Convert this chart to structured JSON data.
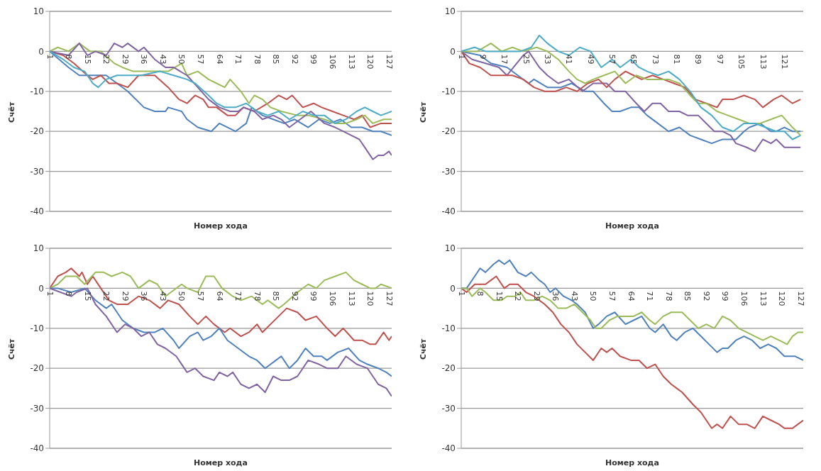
{
  "chart_data": [
    {
      "type": "line",
      "xlabel": "Номер хода",
      "ylabel": "Счёт",
      "xlim": [
        1,
        128
      ],
      "xticks": [
        1,
        8,
        15,
        22,
        29,
        36,
        43,
        50,
        57,
        64,
        71,
        78,
        85,
        92,
        99,
        106,
        113,
        120,
        127
      ],
      "ylim": [
        -40,
        10
      ],
      "yticks": [
        -40,
        -30,
        -20,
        -10,
        0,
        10
      ],
      "grid": "y",
      "series": [
        {
          "color": "#4f81bd",
          "x": [
            1,
            8,
            12,
            18,
            22,
            26,
            30,
            36,
            40,
            44,
            45,
            50,
            52,
            56,
            61,
            64,
            70,
            74,
            76,
            80,
            84,
            88,
            92,
            97,
            101,
            105,
            109,
            113,
            117,
            121,
            124,
            128
          ],
          "values": [
            0,
            -4,
            -6,
            -6,
            -6,
            -8,
            -10,
            -14,
            -15,
            -15,
            -14,
            -15,
            -17,
            -19,
            -20,
            -18,
            -20,
            -18,
            -14,
            -16,
            -17,
            -18,
            -17,
            -19,
            -17,
            -18,
            -17,
            -19,
            -19,
            -20,
            -20,
            -21
          ]
        },
        {
          "color": "#c0504d",
          "x": [
            1,
            6,
            10,
            15,
            17,
            20,
            23,
            26,
            30,
            34,
            40,
            45,
            49,
            52,
            55,
            58,
            60,
            63,
            67,
            70,
            73,
            77,
            82,
            86,
            89,
            91,
            95,
            99,
            102,
            106,
            110,
            114,
            117,
            120,
            124,
            128
          ],
          "values": [
            0,
            -1,
            -3,
            -6,
            -7,
            -6,
            -8,
            -8,
            -9,
            -6,
            -6,
            -9,
            -12,
            -13,
            -11,
            -12,
            -14,
            -14,
            -16,
            -16,
            -14,
            -15,
            -13,
            -11,
            -12,
            -11,
            -14,
            -13,
            -14,
            -15,
            -16,
            -17,
            -16,
            -19,
            -18,
            -18
          ]
        },
        {
          "color": "#9bbb59",
          "x": [
            1,
            4,
            8,
            12,
            16,
            20,
            25,
            28,
            32,
            38,
            45,
            50,
            52,
            56,
            60,
            63,
            66,
            68,
            72,
            75,
            77,
            80,
            83,
            87,
            93,
            97,
            103,
            107,
            111,
            115,
            118,
            121,
            125,
            128
          ],
          "values": [
            0,
            1,
            0,
            2,
            0,
            0,
            -3,
            -4,
            -5,
            -5,
            -5,
            -3,
            -6,
            -5,
            -7,
            -8,
            -9,
            -7,
            -10,
            -13,
            -11,
            -12,
            -14,
            -15,
            -16,
            -16,
            -17,
            -18,
            -18,
            -17,
            -16,
            -18,
            -17,
            -17
          ]
        },
        {
          "color": "#8064a2",
          "x": [
            1,
            8,
            12,
            15,
            18,
            22,
            25,
            28,
            30,
            34,
            36,
            40,
            44,
            47,
            52,
            56,
            60,
            64,
            68,
            71,
            73,
            77,
            80,
            84,
            87,
            90,
            94,
            98,
            103,
            107,
            110,
            113,
            116,
            119,
            121,
            123,
            125,
            127,
            128
          ],
          "values": [
            0,
            -1,
            2,
            -1,
            0,
            -1,
            2,
            1,
            2,
            0,
            1,
            -2,
            -4,
            -4,
            -6,
            -9,
            -12,
            -14,
            -15,
            -15,
            -14,
            -15,
            -17,
            -16,
            -17,
            -19,
            -17,
            -15,
            -18,
            -19,
            -20,
            -21,
            -22,
            -25,
            -27,
            -26,
            -26,
            -25,
            -26
          ]
        },
        {
          "color": "#4bacc6",
          "x": [
            1,
            6,
            10,
            14,
            17,
            19,
            22,
            26,
            30,
            35,
            42,
            47,
            52,
            55,
            60,
            63,
            66,
            70,
            74,
            78,
            82,
            86,
            90,
            95,
            99,
            103,
            107,
            111,
            115,
            118,
            121,
            124,
            128
          ],
          "values": [
            0,
            -2,
            -4,
            -5,
            -8,
            -9,
            -7,
            -6,
            -6,
            -6,
            -5,
            -6,
            -7,
            -8,
            -11,
            -13,
            -14,
            -14,
            -13,
            -15,
            -16,
            -15,
            -17,
            -15,
            -16,
            -16,
            -18,
            -17,
            -15,
            -14,
            -15,
            -16,
            -15
          ]
        }
      ]
    },
    {
      "type": "line",
      "xlabel": "Номер хода",
      "ylabel": "Счёт",
      "xlim": [
        1,
        128
      ],
      "xticks": [
        1,
        9,
        17,
        25,
        33,
        41,
        49,
        57,
        65,
        73,
        81,
        89,
        97,
        105,
        113,
        121
      ],
      "ylim": [
        -40,
        10
      ],
      "yticks": [
        -40,
        -30,
        -20,
        -10,
        0,
        10
      ],
      "grid": "y",
      "series": [
        {
          "color": "#4f81bd",
          "x": [
            1,
            8,
            12,
            18,
            22,
            26,
            28,
            33,
            38,
            42,
            47,
            50,
            54,
            57,
            60,
            64,
            67,
            70,
            74,
            78,
            82,
            86,
            90,
            94,
            98,
            103,
            106,
            108,
            112,
            116,
            118,
            121,
            124,
            127
          ],
          "values": [
            0,
            -1,
            -3,
            -4,
            -6,
            -8,
            -7,
            -9,
            -9,
            -8,
            -10,
            -10,
            -13,
            -15,
            -15,
            -14,
            -14,
            -16,
            -18,
            -20,
            -19,
            -21,
            -22,
            -23,
            -22,
            -22,
            -20,
            -19,
            -18,
            -20,
            -20,
            -19,
            -20,
            -20
          ]
        },
        {
          "color": "#8064a2",
          "x": [
            1,
            5,
            10,
            15,
            18,
            24,
            26,
            30,
            33,
            37,
            41,
            46,
            50,
            55,
            58,
            62,
            66,
            69,
            72,
            75,
            78,
            82,
            85,
            89,
            92,
            95,
            98,
            101,
            103,
            107,
            110,
            113,
            116,
            118,
            121,
            127
          ],
          "values": [
            0,
            -2,
            -3,
            -4,
            -6,
            -1,
            0,
            -4,
            -6,
            -8,
            -7,
            -10,
            -8,
            -8,
            -10,
            -10,
            -13,
            -15,
            -13,
            -13,
            -15,
            -15,
            -16,
            -16,
            -18,
            -20,
            -20,
            -21,
            -23,
            -24,
            -25,
            -22,
            -23,
            -22,
            -24,
            -24
          ]
        },
        {
          "color": "#c0504d",
          "x": [
            1,
            4,
            8,
            12,
            16,
            20,
            24,
            28,
            32,
            36,
            40,
            44,
            48,
            52,
            55,
            58,
            62,
            65,
            68,
            72,
            76,
            80,
            84,
            88,
            92,
            96,
            98,
            102,
            106,
            110,
            113,
            117,
            120,
            124,
            127
          ],
          "values": [
            0,
            -3,
            -4,
            -6,
            -6,
            -6,
            -7,
            -9,
            -10,
            -10,
            -9,
            -10,
            -8,
            -7,
            -9,
            -7,
            -5,
            -6,
            -7,
            -6,
            -7,
            -8,
            -9,
            -12,
            -13,
            -14,
            -12,
            -12,
            -11,
            -12,
            -14,
            -12,
            -11,
            -13,
            -12
          ]
        },
        {
          "color": "#9bbb59",
          "x": [
            1,
            7,
            12,
            16,
            20,
            24,
            29,
            33,
            37,
            41,
            44,
            47,
            50,
            54,
            58,
            62,
            66,
            70,
            74,
            78,
            82,
            86,
            89,
            92,
            96,
            100,
            104,
            108,
            112,
            116,
            120,
            124,
            127
          ],
          "values": [
            0,
            0,
            2,
            0,
            1,
            0,
            1,
            0,
            -2,
            -5,
            -7,
            -8,
            -7,
            -6,
            -5,
            -8,
            -6,
            -7,
            -7,
            -7,
            -8,
            -11,
            -13,
            -13,
            -15,
            -16,
            -17,
            -18,
            -18,
            -17,
            -16,
            -19,
            -21
          ]
        },
        {
          "color": "#4bacc6",
          "x": [
            1,
            6,
            10,
            15,
            19,
            23,
            27,
            30,
            33,
            37,
            41,
            45,
            49,
            53,
            57,
            60,
            64,
            67,
            70,
            74,
            78,
            82,
            86,
            90,
            94,
            98,
            102,
            106,
            110,
            114,
            118,
            121,
            124,
            127
          ],
          "values": [
            0,
            1,
            0,
            0,
            0,
            0,
            1,
            4,
            2,
            0,
            -1,
            1,
            0,
            -4,
            -2,
            -4,
            -2,
            -4,
            -5,
            -6,
            -5,
            -7,
            -10,
            -14,
            -16,
            -19,
            -20,
            -18,
            -18,
            -19,
            -20,
            -20,
            -22,
            -21
          ]
        }
      ]
    },
    {
      "type": "line",
      "xlabel": "Номер хода",
      "ylabel": "Счёт",
      "xlim": [
        1,
        128
      ],
      "xticks": [
        1,
        8,
        15,
        22,
        29,
        36,
        43,
        50,
        57,
        64,
        71,
        78,
        85,
        92,
        99,
        106,
        113,
        120,
        127
      ],
      "ylim": [
        -40,
        10
      ],
      "yticks": [
        -40,
        -30,
        -20,
        -10,
        0,
        10
      ],
      "grid": "y",
      "series": [
        {
          "color": "#c0504d",
          "x": [
            1,
            4,
            7,
            9,
            12,
            13,
            15,
            17,
            20,
            23,
            26,
            30,
            34,
            38,
            42,
            45,
            49,
            53,
            56,
            59,
            62,
            66,
            68,
            72,
            75,
            78,
            80,
            83,
            86,
            89,
            93,
            96,
            100,
            104,
            107,
            110,
            114,
            117,
            120,
            122,
            125,
            127,
            128
          ],
          "values": [
            0,
            3,
            4,
            5,
            3,
            4,
            1,
            3,
            0,
            -3,
            -4,
            -4,
            -2,
            -3,
            -5,
            -3,
            -4,
            -7,
            -9,
            -7,
            -9,
            -11,
            -10,
            -12,
            -11,
            -9,
            -11,
            -9,
            -7,
            -5,
            -6,
            -8,
            -7,
            -10,
            -12,
            -10,
            -13,
            -13,
            -14,
            -14,
            -11,
            -13,
            -12
          ]
        },
        {
          "color": "#9bbb59",
          "x": [
            1,
            4,
            7,
            11,
            14,
            18,
            21,
            24,
            28,
            31,
            34,
            38,
            41,
            44,
            46,
            50,
            52,
            56,
            59,
            62,
            65,
            69,
            72,
            76,
            80,
            82,
            86,
            88,
            93,
            97,
            100,
            103,
            107,
            111,
            114,
            117,
            120,
            122,
            124,
            128
          ],
          "values": [
            0,
            1,
            3,
            3,
            1,
            4,
            4,
            3,
            4,
            3,
            0,
            2,
            1,
            -2,
            -1,
            1,
            0,
            -1,
            3,
            3,
            0,
            -2,
            -3,
            -2,
            -4,
            -3,
            -5,
            -4,
            -1,
            1,
            0,
            2,
            3,
            4,
            2,
            1,
            0,
            0,
            1,
            0
          ]
        },
        {
          "color": "#4f81bd",
          "x": [
            1,
            4,
            9,
            14,
            18,
            22,
            24,
            28,
            32,
            36,
            40,
            43,
            47,
            49,
            53,
            56,
            58,
            61,
            64,
            67,
            71,
            75,
            78,
            81,
            85,
            87,
            90,
            93,
            96,
            99,
            102,
            104,
            108,
            112,
            116,
            119,
            123,
            126,
            128
          ],
          "values": [
            0,
            0,
            -1,
            0,
            -3,
            -5,
            -4,
            -8,
            -10,
            -11,
            -11,
            -10,
            -13,
            -15,
            -12,
            -11,
            -13,
            -12,
            -10,
            -13,
            -15,
            -17,
            -18,
            -20,
            -18,
            -17,
            -20,
            -18,
            -15,
            -17,
            -17,
            -18,
            -16,
            -15,
            -18,
            -19,
            -20,
            -21,
            -22
          ]
        },
        {
          "color": "#8064a2",
          "x": [
            1,
            5,
            9,
            11,
            15,
            18,
            22,
            26,
            29,
            32,
            35,
            38,
            41,
            44,
            48,
            52,
            55,
            58,
            62,
            64,
            67,
            69,
            72,
            75,
            78,
            81,
            84,
            87,
            90,
            93,
            97,
            101,
            104,
            108,
            111,
            115,
            119,
            123,
            126,
            128
          ],
          "values": [
            0,
            -1,
            -2,
            -1,
            0,
            -4,
            -7,
            -11,
            -9,
            -10,
            -12,
            -11,
            -14,
            -15,
            -17,
            -21,
            -20,
            -22,
            -23,
            -21,
            -22,
            -21,
            -24,
            -25,
            -24,
            -26,
            -22,
            -23,
            -23,
            -22,
            -18,
            -19,
            -20,
            -20,
            -17,
            -19,
            -20,
            -24,
            -25,
            -27
          ]
        }
      ]
    },
    {
      "type": "line",
      "xlabel": "Номер хода",
      "ylabel": "Счёт",
      "xlim": [
        1,
        128
      ],
      "xticks": [
        1,
        8,
        15,
        22,
        29,
        36,
        43,
        50,
        57,
        64,
        71,
        78,
        85,
        92,
        99,
        106,
        113,
        120,
        127
      ],
      "ylim": [
        -40,
        10
      ],
      "yticks": [
        -40,
        -30,
        -20,
        -10,
        0,
        10
      ],
      "grid": "y",
      "series": [
        {
          "color": "#4f81bd",
          "x": [
            1,
            3,
            6,
            8,
            10,
            13,
            15,
            17,
            19,
            22,
            25,
            27,
            30,
            32,
            34,
            36,
            39,
            42,
            44,
            47,
            50,
            52,
            55,
            58,
            62,
            65,
            68,
            71,
            73,
            76,
            79,
            81,
            84,
            87,
            90,
            93,
            96,
            98,
            100,
            103,
            106,
            109,
            112,
            115,
            118,
            121,
            125,
            128
          ],
          "values": [
            0,
            0,
            3,
            5,
            4,
            6,
            7,
            6,
            7,
            4,
            3,
            4,
            2,
            1,
            -1,
            0,
            -2,
            -3,
            -4,
            -6,
            -10,
            -9,
            -7,
            -6,
            -9,
            -8,
            -7,
            -10,
            -11,
            -9,
            -12,
            -13,
            -11,
            -10,
            -12,
            -14,
            -16,
            -15,
            -15,
            -13,
            -12,
            -13,
            -15,
            -14,
            -15,
            -17,
            -17,
            -18
          ]
        },
        {
          "color": "#c0504d",
          "x": [
            1,
            3,
            6,
            8,
            10,
            12,
            14,
            16,
            17,
            19,
            22,
            25,
            28,
            32,
            35,
            38,
            41,
            44,
            47,
            50,
            53,
            55,
            57,
            60,
            64,
            67,
            70,
            73,
            76,
            79,
            81,
            83,
            87,
            90,
            94,
            96,
            98,
            101,
            104,
            107,
            110,
            113,
            116,
            119,
            121,
            124,
            126,
            128
          ],
          "values": [
            0,
            -1,
            1,
            1,
            1,
            2,
            3,
            1,
            0,
            1,
            1,
            -1,
            -2,
            -4,
            -6,
            -9,
            -11,
            -14,
            -16,
            -18,
            -15,
            -16,
            -15,
            -17,
            -18,
            -18,
            -20,
            -19,
            -22,
            -24,
            -25,
            -26,
            -29,
            -31,
            -35,
            -34,
            -35,
            -32,
            -34,
            -34,
            -35,
            -32,
            -33,
            -34,
            -35,
            -35,
            -34,
            -33
          ]
        },
        {
          "color": "#9bbb59",
          "x": [
            1,
            3,
            5,
            8,
            10,
            13,
            16,
            18,
            21,
            23,
            25,
            28,
            31,
            34,
            37,
            40,
            43,
            46,
            49,
            51,
            53,
            56,
            59,
            62,
            65,
            68,
            71,
            73,
            76,
            79,
            83,
            86,
            89,
            92,
            95,
            98,
            101,
            104,
            107,
            110,
            113,
            116,
            119,
            122,
            124,
            126,
            128
          ],
          "values": [
            0,
            0,
            -2,
            0,
            -1,
            -3,
            -3,
            -2,
            -2,
            -1,
            -3,
            -3,
            -2,
            -3,
            -5,
            -5,
            -4,
            -6,
            -8,
            -10,
            -10,
            -8,
            -7,
            -7,
            -7,
            -6,
            -8,
            -9,
            -7,
            -6,
            -6,
            -8,
            -10,
            -9,
            -10,
            -7,
            -8,
            -10,
            -11,
            -12,
            -13,
            -12,
            -13,
            -14,
            -12,
            -11,
            -11
          ]
        }
      ]
    }
  ]
}
